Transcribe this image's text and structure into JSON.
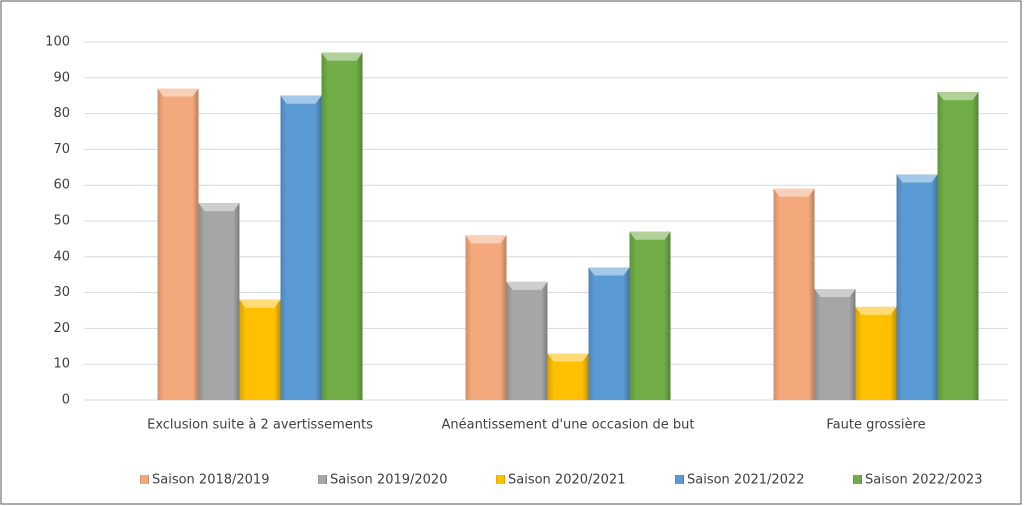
{
  "chart_data": {
    "type": "bar",
    "categories": [
      "Exclusion suite à 2 avertissements",
      "Anéantissement d'une occasion de but",
      "Faute grossière"
    ],
    "series": [
      {
        "name": "Saison 2018/2019",
        "color": "#f4a97c",
        "values": [
          87,
          46,
          59
        ]
      },
      {
        "name": "Saison 2019/2020",
        "color": "#a6a6a6",
        "values": [
          55,
          33,
          31
        ]
      },
      {
        "name": "Saison 2020/2021",
        "color": "#ffc000",
        "values": [
          28,
          13,
          26
        ]
      },
      {
        "name": "Saison 2021/2022",
        "color": "#5b9bd5",
        "values": [
          85,
          37,
          63
        ]
      },
      {
        "name": "Saison 2022/2023",
        "color": "#70ad47",
        "values": [
          97,
          47,
          86
        ]
      }
    ],
    "ylim": [
      0,
      100
    ],
    "yticks": [
      0,
      10,
      20,
      30,
      40,
      50,
      60,
      70,
      80,
      90,
      100
    ],
    "grid": true,
    "legend": "bottom"
  }
}
